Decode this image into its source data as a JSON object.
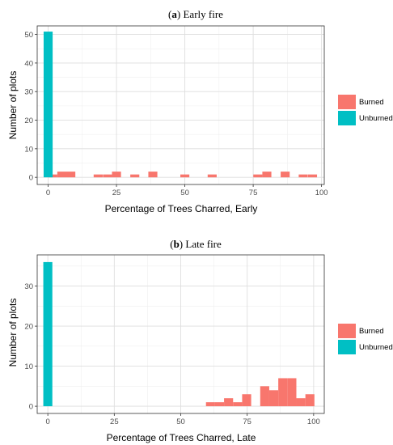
{
  "colors": {
    "burned": "#F8766D",
    "unburned": "#00BFC4",
    "grid_major": "#dedede",
    "grid_minor": "#efefef",
    "panel_border": "#333333"
  },
  "chart_data": [
    {
      "type": "bar",
      "title_letter": "a",
      "title_text": "Early fire",
      "title_open": "(",
      "title_close": ")",
      "xlabel": "Percentage of Trees Charred, Early",
      "ylabel": "Number of plots",
      "xlim": [
        -4,
        101
      ],
      "ylim": [
        -2.5,
        53
      ],
      "xticks": [
        0,
        25,
        50,
        75,
        100
      ],
      "yticks": [
        0,
        10,
        20,
        30,
        40,
        50
      ],
      "grid": true,
      "legend_position": "right",
      "bin_width": 3.3,
      "series": [
        {
          "name": "Burned",
          "color": "#F8766D",
          "bars": [
            {
              "x": 1.7,
              "value": 1
            },
            {
              "x": 5,
              "value": 2
            },
            {
              "x": 8.3,
              "value": 2
            },
            {
              "x": 18.3,
              "value": 1
            },
            {
              "x": 21.7,
              "value": 1
            },
            {
              "x": 25,
              "value": 2
            },
            {
              "x": 31.7,
              "value": 1
            },
            {
              "x": 38.3,
              "value": 2
            },
            {
              "x": 50,
              "value": 1
            },
            {
              "x": 60,
              "value": 1
            },
            {
              "x": 76.7,
              "value": 1
            },
            {
              "x": 80,
              "value": 2
            },
            {
              "x": 86.7,
              "value": 2
            },
            {
              "x": 93.3,
              "value": 1
            },
            {
              "x": 96.7,
              "value": 1
            }
          ]
        },
        {
          "name": "Unburned",
          "color": "#00BFC4",
          "bars": [
            {
              "x": 0,
              "value": 51
            }
          ]
        }
      ]
    },
    {
      "type": "bar",
      "title_letter": "b",
      "title_text": "Late fire",
      "title_open": "(",
      "title_close": ")",
      "xlabel": "Percentage of Trees Charred, Late",
      "ylabel": "Number of plots",
      "xlim": [
        -4,
        104
      ],
      "ylim": [
        -1.8,
        37.8
      ],
      "xticks": [
        0,
        25,
        50,
        75,
        100
      ],
      "yticks": [
        0,
        10,
        20,
        30
      ],
      "grid": true,
      "legend_position": "right",
      "bin_width": 3.4,
      "series": [
        {
          "name": "Burned",
          "color": "#F8766D",
          "bars": [
            {
              "x": 61.2,
              "value": 1
            },
            {
              "x": 64.6,
              "value": 1
            },
            {
              "x": 68,
              "value": 2
            },
            {
              "x": 71.4,
              "value": 1
            },
            {
              "x": 74.8,
              "value": 3
            },
            {
              "x": 81.6,
              "value": 5
            },
            {
              "x": 85,
              "value": 4
            },
            {
              "x": 88.4,
              "value": 7
            },
            {
              "x": 91.8,
              "value": 7
            },
            {
              "x": 95.2,
              "value": 2
            },
            {
              "x": 98.6,
              "value": 3
            }
          ]
        },
        {
          "name": "Unburned",
          "color": "#00BFC4",
          "bars": [
            {
              "x": 0,
              "value": 36
            }
          ]
        }
      ]
    }
  ]
}
